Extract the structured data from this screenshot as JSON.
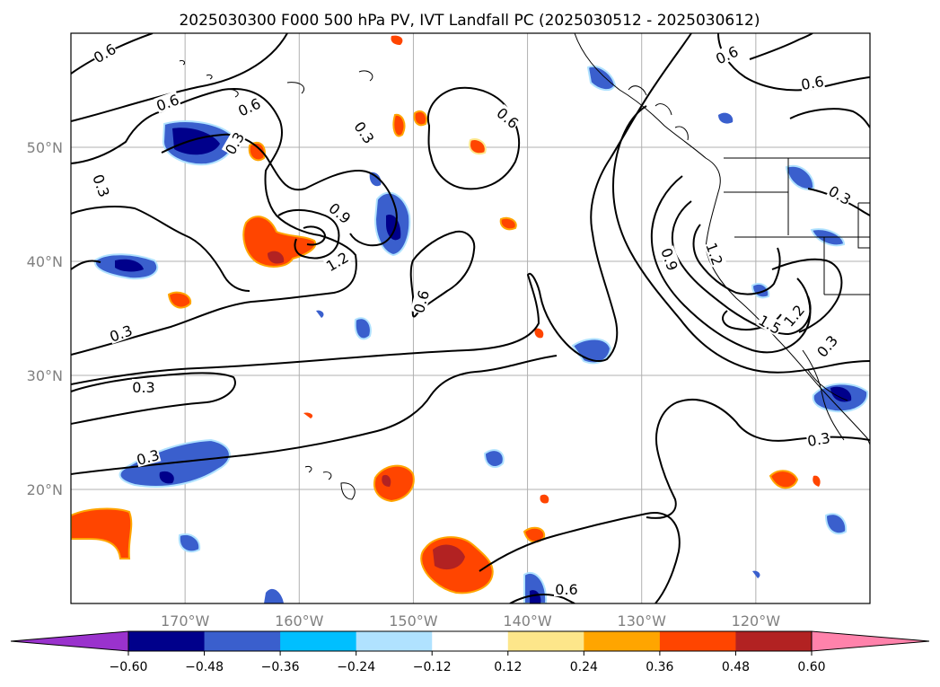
{
  "title": "2025030300 F000 500 hPa PV, IVT Landfall PC (2025030512 - 2025030612)",
  "map": {
    "lon_range": [
      -180,
      -110
    ],
    "lat_range": [
      10,
      60
    ],
    "lon_ticks": [
      {
        "lon": -170,
        "label": "170°W"
      },
      {
        "lon": -160,
        "label": "160°W"
      },
      {
        "lon": -150,
        "label": "150°W"
      },
      {
        "lon": -140,
        "label": "140°W"
      },
      {
        "lon": -130,
        "label": "130°W"
      },
      {
        "lon": -120,
        "label": "120°W"
      }
    ],
    "lat_ticks": [
      {
        "lat": 20,
        "label": "20°N"
      },
      {
        "lat": 30,
        "label": "30°N"
      },
      {
        "lat": 40,
        "label": "40°N"
      },
      {
        "lat": 50,
        "label": "50°N"
      }
    ],
    "gridlines": true
  },
  "colorbar": {
    "levels": [
      -0.6,
      -0.48,
      -0.36,
      -0.24,
      -0.12,
      0.12,
      0.24,
      0.36,
      0.48,
      0.6
    ],
    "labels": [
      "−0.60",
      "−0.48",
      "−0.36",
      "−0.24",
      "−0.12",
      "0.12",
      "0.24",
      "0.36",
      "0.48",
      "0.60"
    ],
    "colors": [
      "#9a32cd",
      "#00008b",
      "#3a5fcd",
      "#00bfff",
      "#b0e2ff",
      "#ffffff",
      "#fde68a",
      "#ffa500",
      "#ff4500",
      "#b22222",
      "#ff82ab"
    ],
    "extend": "both"
  },
  "pv_contours": {
    "levels": [
      0.3,
      0.6,
      0.9,
      1.2,
      1.5
    ],
    "inline_labels": [
      "0.6",
      "0.6",
      "0.6",
      "0.6",
      "0.6",
      "0.6",
      "0.6",
      "0.3",
      "0.3",
      "0.3",
      "0.3",
      "0.3",
      "0.3",
      "0.3",
      "0.3",
      "0.9",
      "0.9",
      "1.2",
      "1.2",
      "1.5",
      "1.2",
      "0.3"
    ]
  },
  "colors": {
    "contour": "#000000",
    "coast": "#000000",
    "grid": "#b0b0b0",
    "tick_labels": "#808080"
  }
}
